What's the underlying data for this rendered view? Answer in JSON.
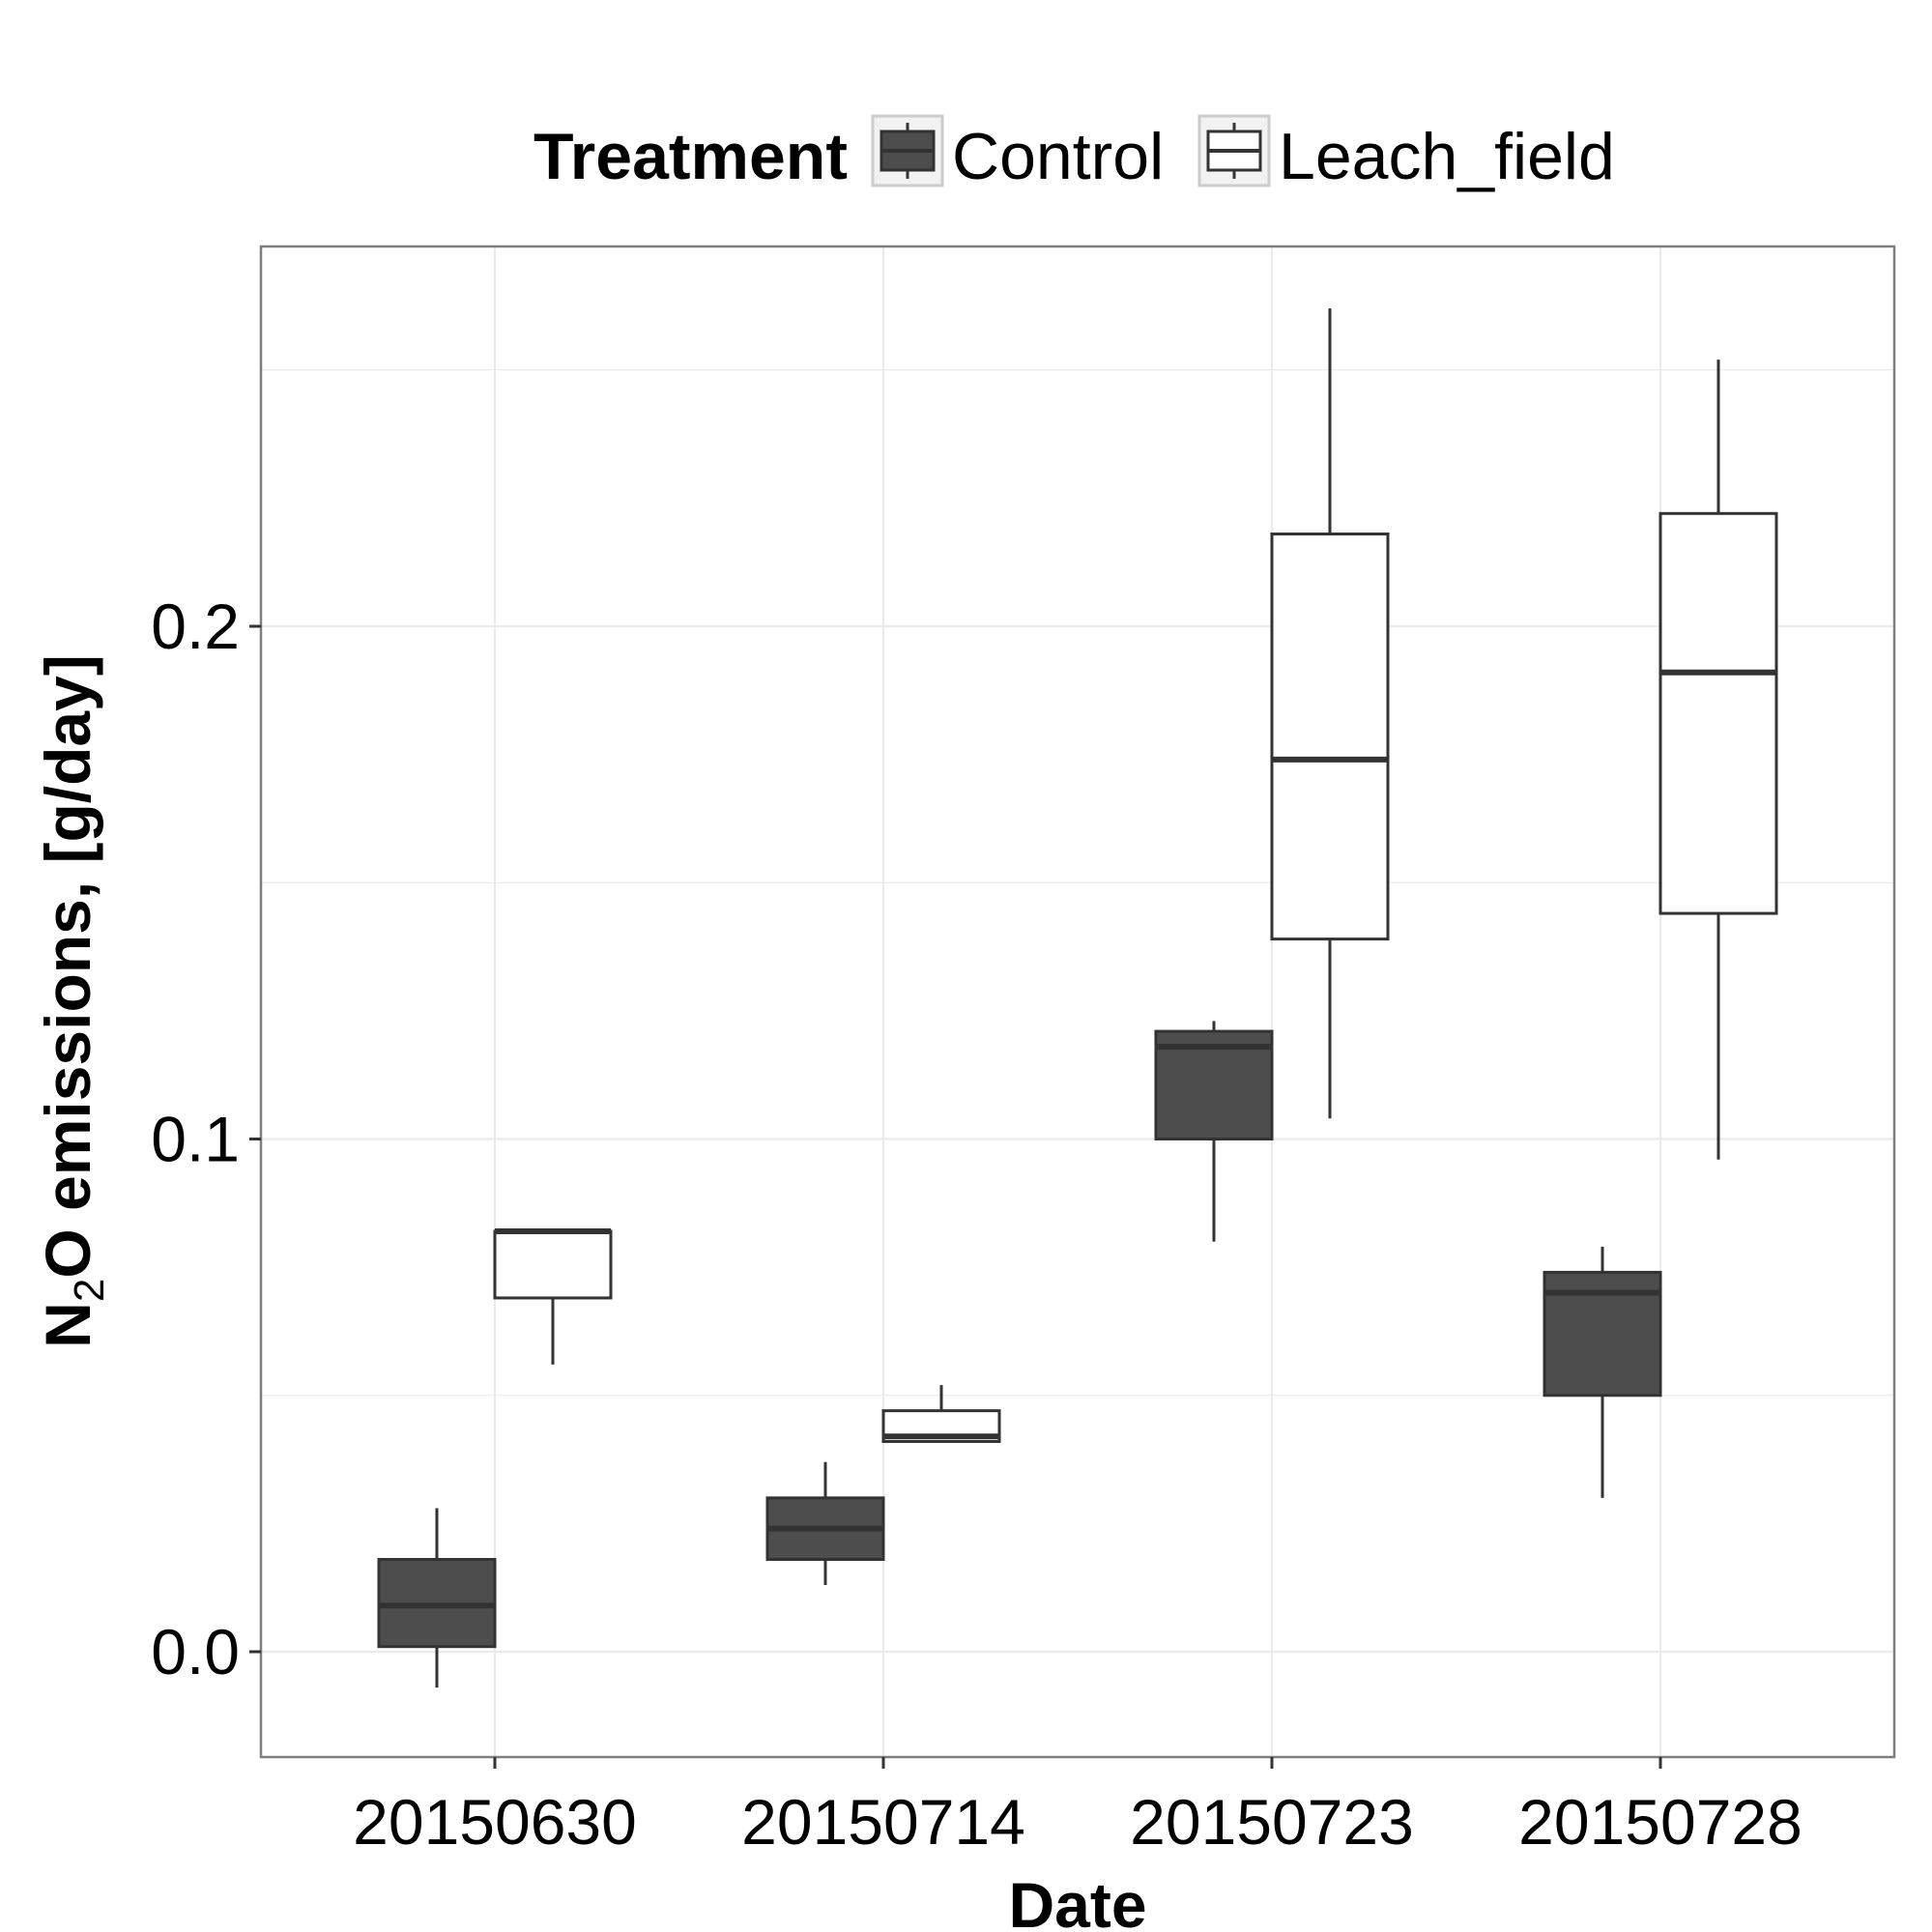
{
  "chart_data": {
    "type": "boxplot",
    "xlabel": "Date",
    "ylabel_parts": [
      "N",
      "2",
      "O emissions, [g/day]"
    ],
    "legend": {
      "title": "Treatment",
      "position": "top"
    },
    "categories": [
      "20150630",
      "20150714",
      "20150723",
      "20150728"
    ],
    "y_ticks": [
      0.0,
      0.1,
      0.2
    ],
    "y_tick_labels": [
      "0.0",
      "0.1",
      "0.2"
    ],
    "ylim": [
      -0.02,
      0.275
    ],
    "grid": true,
    "colors": {
      "Control": "#4d4d4d",
      "Leach_field": "#ffffff",
      "stroke": "#333333",
      "grid": "#ebebeb",
      "panel_border": "#7f7f7f"
    },
    "series": [
      {
        "name": "Control",
        "boxes": [
          {
            "min": -0.007,
            "q1": 0.001,
            "median": 0.009,
            "q3": 0.018,
            "max": 0.028
          },
          {
            "min": 0.013,
            "q1": 0.018,
            "median": 0.024,
            "q3": 0.03,
            "max": 0.037
          },
          {
            "min": 0.08,
            "q1": 0.1,
            "median": 0.118,
            "q3": 0.121,
            "max": 0.123
          },
          {
            "min": 0.03,
            "q1": 0.05,
            "median": 0.07,
            "q3": 0.074,
            "max": 0.079
          }
        ]
      },
      {
        "name": "Leach_field",
        "boxes": [
          {
            "min": 0.056,
            "q1": 0.069,
            "median": 0.082,
            "q3": 0.082,
            "max": 0.082
          },
          {
            "min": 0.041,
            "q1": 0.041,
            "median": 0.042,
            "q3": 0.047,
            "max": 0.052
          },
          {
            "min": 0.104,
            "q1": 0.139,
            "median": 0.174,
            "q3": 0.218,
            "max": 0.262
          },
          {
            "min": 0.096,
            "q1": 0.144,
            "median": 0.191,
            "q3": 0.222,
            "max": 0.252
          }
        ]
      }
    ]
  }
}
